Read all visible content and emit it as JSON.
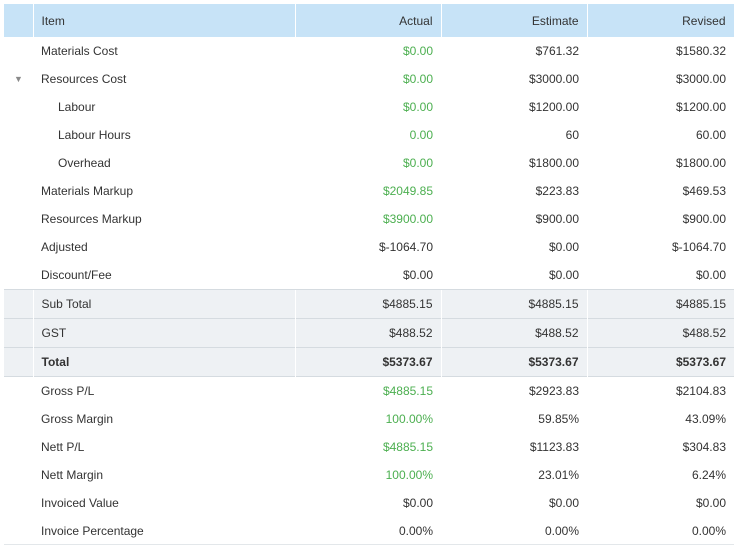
{
  "headers": {
    "item": "Item",
    "actual": "Actual",
    "estimate": "Estimate",
    "revised": "Revised"
  },
  "rows": [
    {
      "label": "Materials Cost",
      "actual": "$0.00",
      "estimate": "$761.32",
      "revised": "$1580.32",
      "actual_green": true
    },
    {
      "label": "Resources Cost",
      "actual": "$0.00",
      "estimate": "$3000.00",
      "revised": "$3000.00",
      "actual_green": true,
      "expanded": true
    },
    {
      "label": "Labour",
      "actual": "$0.00",
      "estimate": "$1200.00",
      "revised": "$1200.00",
      "actual_green": true,
      "child": true
    },
    {
      "label": "Labour Hours",
      "actual": "0.00",
      "estimate": "60",
      "revised": "60.00",
      "actual_green": true,
      "child": true
    },
    {
      "label": "Overhead",
      "actual": "$0.00",
      "estimate": "$1800.00",
      "revised": "$1800.00",
      "actual_green": true,
      "child": true
    },
    {
      "label": "Materials Markup",
      "actual": "$2049.85",
      "estimate": "$223.83",
      "revised": "$469.53",
      "actual_green": true
    },
    {
      "label": "Resources Markup",
      "actual": "$3900.00",
      "estimate": "$900.00",
      "revised": "$900.00",
      "actual_green": true
    },
    {
      "label": "Adjusted",
      "actual": "$-1064.70",
      "estimate": "$0.00",
      "revised": "$-1064.70"
    },
    {
      "label": "Discount/Fee",
      "actual": "$0.00",
      "estimate": "$0.00",
      "revised": "$0.00"
    },
    {
      "label": "Sub Total",
      "actual": "$4885.15",
      "estimate": "$4885.15",
      "revised": "$4885.15",
      "summary": true
    },
    {
      "label": "GST",
      "actual": "$488.52",
      "estimate": "$488.52",
      "revised": "$488.52",
      "summary": true
    },
    {
      "label": "Total",
      "actual": "$5373.67",
      "estimate": "$5373.67",
      "revised": "$5373.67",
      "summary": true,
      "total": true
    },
    {
      "label": "Gross P/L",
      "actual": "$4885.15",
      "estimate": "$2923.83",
      "revised": "$2104.83",
      "actual_green": true
    },
    {
      "label": "Gross Margin",
      "actual": "100.00%",
      "estimate": "59.85%",
      "revised": "43.09%",
      "actual_green": true
    },
    {
      "label": "Nett P/L",
      "actual": "$4885.15",
      "estimate": "$1123.83",
      "revised": "$304.83",
      "actual_green": true
    },
    {
      "label": "Nett Margin",
      "actual": "100.00%",
      "estimate": "23.01%",
      "revised": "6.24%",
      "actual_green": true
    },
    {
      "label": "Invoiced Value",
      "actual": "$0.00",
      "estimate": "$0.00",
      "revised": "$0.00"
    },
    {
      "label": "Invoice Percentage",
      "actual": "0.00%",
      "estimate": "0.00%",
      "revised": "0.00%"
    }
  ],
  "colors": {
    "header_bg": "#c7e3f7",
    "summary_bg": "#eef1f4",
    "positive": "#4caf50",
    "text": "#333333"
  },
  "icons": {
    "expanded_toggle": "caret-down-icon"
  }
}
